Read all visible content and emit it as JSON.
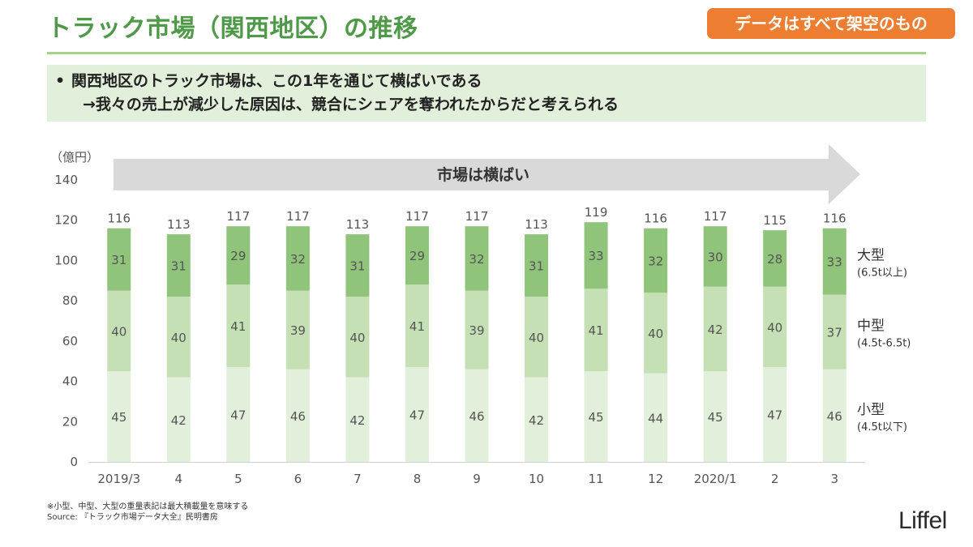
{
  "header": {
    "title": "トラック市場（関西地区）の推移",
    "disclaimer": "データはすべて架空のもの"
  },
  "message": {
    "bullet": "•",
    "line1": "関西地区のトラック市場は、この1年を通じて横ばいである",
    "line2": "→我々の売上が減少した原因は、競合にシェアを奪われたからだと考えられる"
  },
  "chart_data": {
    "type": "bar",
    "stacked": true,
    "y_unit_label": "（億円）",
    "arrow_label": "市場は横ばい",
    "categories": [
      "2019/3",
      "4",
      "5",
      "6",
      "7",
      "8",
      "9",
      "10",
      "11",
      "12",
      "2020/1",
      "2",
      "3"
    ],
    "totals": [
      116,
      113,
      117,
      117,
      113,
      117,
      117,
      113,
      119,
      116,
      117,
      115,
      116
    ],
    "series": [
      {
        "name": "小型",
        "sub": "(4.5t以下)",
        "color": "#e2efda",
        "values": [
          45,
          42,
          47,
          46,
          42,
          47,
          46,
          42,
          45,
          44,
          45,
          47,
          46
        ]
      },
      {
        "name": "中型",
        "sub": "(4.5t-6.5t)",
        "color": "#c5e0b4",
        "values": [
          40,
          40,
          41,
          39,
          40,
          41,
          39,
          40,
          41,
          40,
          42,
          40,
          37
        ]
      },
      {
        "name": "大型",
        "sub": "(6.5t以上)",
        "color": "#8fc47a",
        "values": [
          31,
          31,
          29,
          32,
          31,
          29,
          32,
          31,
          33,
          32,
          30,
          28,
          33
        ]
      }
    ],
    "ylim": [
      0,
      140
    ],
    "yticks": [
      0,
      20,
      40,
      60,
      80,
      100,
      120,
      140
    ],
    "legend": "right"
  },
  "footnote": {
    "line1": "※小型、中型、大型の重量表記は最大積載量を意味する",
    "line2": "Source: 『トラック市場データ大全』民明書房"
  },
  "logo": "Liffel"
}
